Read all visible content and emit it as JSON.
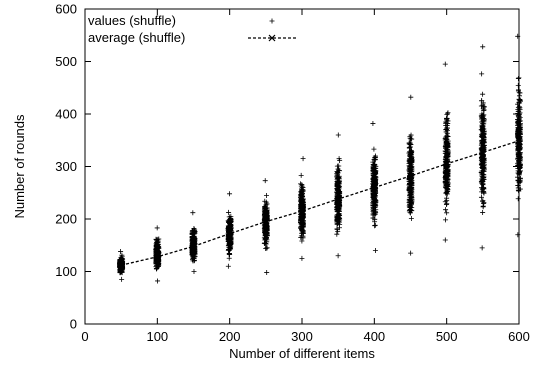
{
  "chart_data": {
    "type": "scatter",
    "xlabel": "Number of different items",
    "ylabel": "Number of rounds",
    "xlim": [
      0,
      600
    ],
    "ylim": [
      0,
      600
    ],
    "xticks": [
      0,
      100,
      200,
      300,
      400,
      500,
      600
    ],
    "yticks": [
      0,
      100,
      200,
      300,
      400,
      500,
      600
    ],
    "grid": false,
    "legend_position": "top-left",
    "series": [
      {
        "name": "values (shuffle)",
        "marker": "plus",
        "color": "#000000",
        "groups": [
          {
            "x": 50,
            "min": 85,
            "max": 138
          },
          {
            "x": 100,
            "min": 82,
            "max": 183
          },
          {
            "x": 150,
            "min": 100,
            "max": 212
          },
          {
            "x": 200,
            "min": 110,
            "max": 248
          },
          {
            "x": 250,
            "min": 98,
            "max": 273
          },
          {
            "x": 300,
            "min": 125,
            "max": 315
          },
          {
            "x": 350,
            "min": 130,
            "max": 360
          },
          {
            "x": 400,
            "min": 140,
            "max": 382
          },
          {
            "x": 450,
            "min": 135,
            "max": 432
          },
          {
            "x": 500,
            "min": 160,
            "max": 495
          },
          {
            "x": 550,
            "min": 145,
            "max": 528
          },
          {
            "x": 600,
            "min": 170,
            "max": 548
          }
        ]
      },
      {
        "name": "average (shuffle)",
        "marker": "cross",
        "line": "dashed",
        "color": "#000000",
        "x": [
          50,
          100,
          150,
          200,
          250,
          300,
          350,
          400,
          450,
          500,
          550,
          600
        ],
        "y": [
          112,
          128,
          148,
          172,
          195,
          215,
          238,
          260,
          282,
          305,
          327,
          349
        ]
      }
    ]
  }
}
